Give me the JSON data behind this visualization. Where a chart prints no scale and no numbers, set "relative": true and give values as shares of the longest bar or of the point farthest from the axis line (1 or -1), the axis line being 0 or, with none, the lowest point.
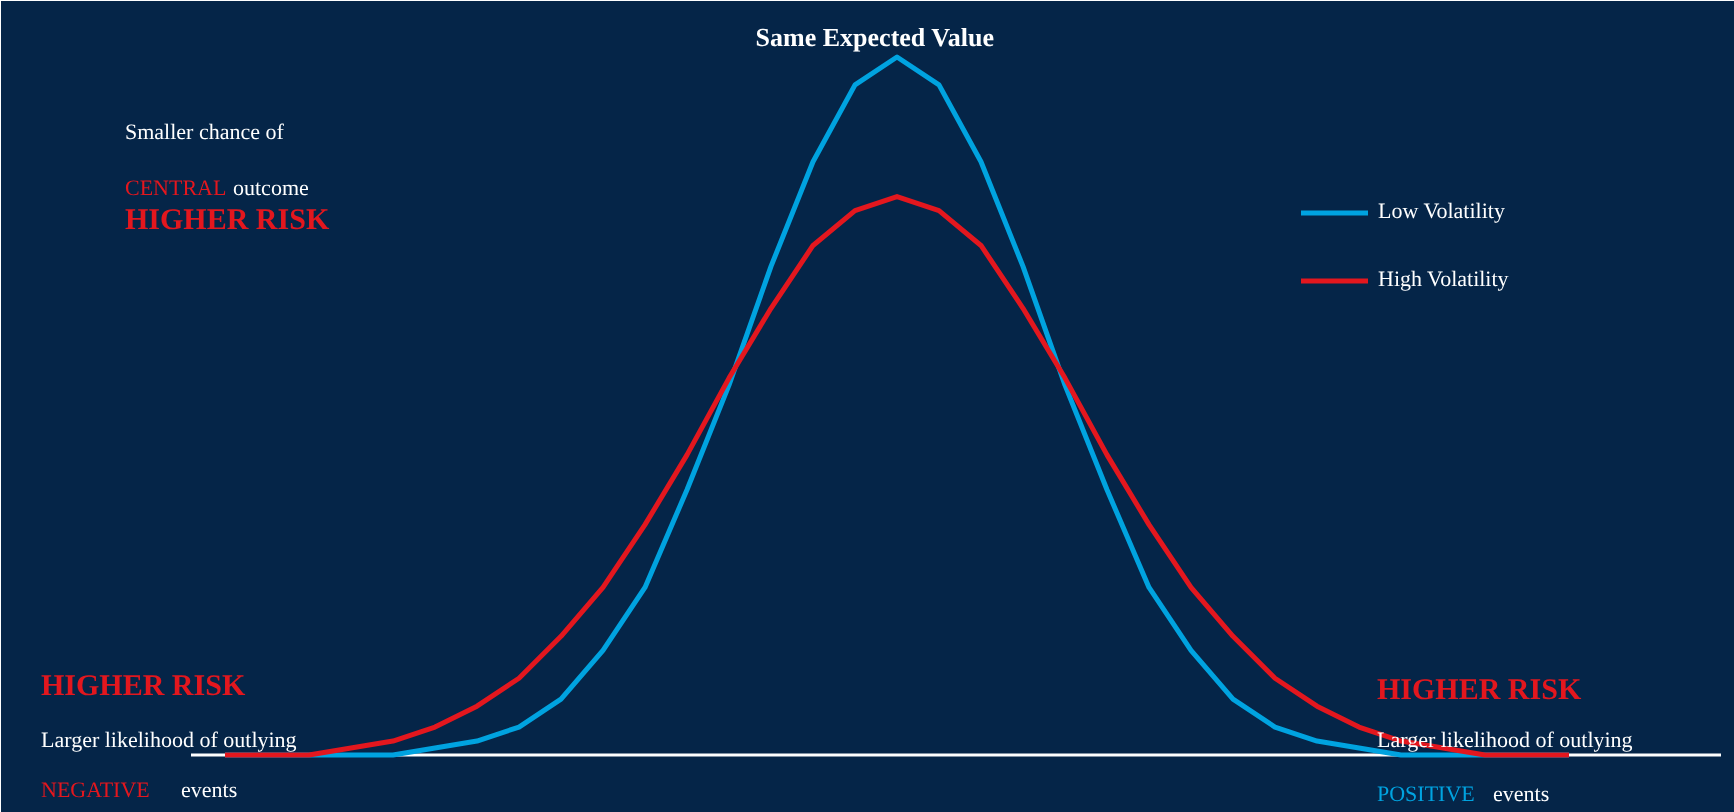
{
  "chart_data": {
    "type": "line",
    "title": "Same Expected Value",
    "relative": true,
    "legend": "top right",
    "categories": [
      null,
      null,
      null,
      null,
      null,
      null,
      null,
      null,
      null,
      null,
      null,
      null,
      null,
      null,
      null,
      null,
      null,
      null,
      null,
      null,
      null,
      null,
      null,
      null,
      null,
      null,
      null,
      null,
      null,
      null,
      null,
      null,
      null
    ],
    "series": [
      {
        "name": "Low Volatility",
        "color": "#00a3e0",
        "values": [
          0,
          0,
          0,
          0,
          0,
          0.01,
          0.02,
          0.04,
          0.08,
          0.15,
          0.24,
          0.38,
          0.53,
          0.7,
          0.85,
          0.96,
          1,
          0.96,
          0.85,
          0.7,
          0.53,
          0.38,
          0.24,
          0.15,
          0.08,
          0.04,
          0.02,
          0.01,
          0,
          0,
          0,
          0,
          0
        ]
      },
      {
        "name": "High Volatility",
        "color": "#e3171e",
        "values": [
          0,
          0,
          0,
          0.01,
          0.02,
          0.04,
          0.07,
          0.11,
          0.17,
          0.24,
          0.33,
          0.43,
          0.54,
          0.64,
          0.73,
          0.78,
          0.8,
          0.78,
          0.73,
          0.64,
          0.54,
          0.43,
          0.33,
          0.24,
          0.17,
          0.11,
          0.07,
          0.04,
          0.02,
          0.01,
          0,
          0,
          0
        ]
      }
    ],
    "annotations": [
      "Smaller chance of",
      "CENTRAL",
      "outcome",
      "HIGHER RISK",
      "HIGHER RISK",
      "Larger likelihood of outlying",
      "NEGATIVE",
      "events",
      "HIGHER RISK",
      "Larger likelihood of outlying",
      "POSITIVE",
      "events"
    ]
  }
}
